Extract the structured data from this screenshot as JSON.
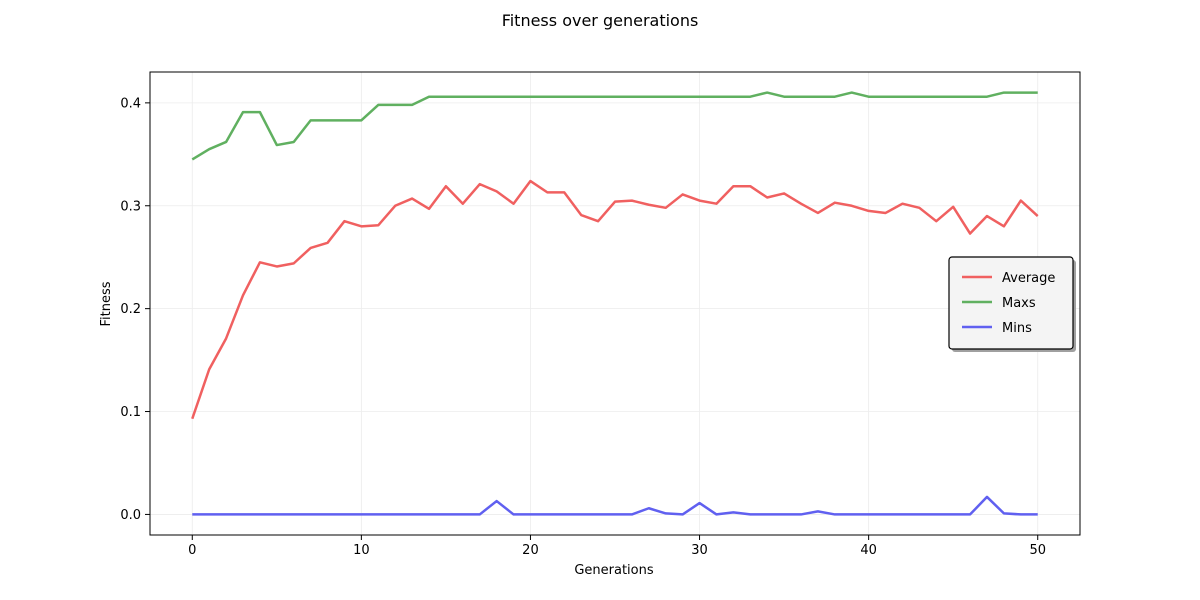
{
  "chart_data": {
    "type": "line",
    "title": "Fitness over generations",
    "xlabel": "Generations",
    "ylabel": "Fitness",
    "xlim": [
      -2.5,
      52.5
    ],
    "ylim": [
      -0.02,
      0.43
    ],
    "xticks": [
      0,
      10,
      20,
      30,
      40,
      50
    ],
    "yticks": [
      0.0,
      0.1,
      0.2,
      0.3,
      0.4
    ],
    "xtick_labels": [
      "0",
      "10",
      "20",
      "30",
      "40",
      "50"
    ],
    "ytick_labels": [
      "0.0",
      "0.1",
      "0.2",
      "0.3",
      "0.4"
    ],
    "grid": true,
    "legend_position": "center-right",
    "x": [
      0,
      1,
      2,
      3,
      4,
      5,
      6,
      7,
      8,
      9,
      10,
      11,
      12,
      13,
      14,
      15,
      16,
      17,
      18,
      19,
      20,
      21,
      22,
      23,
      24,
      25,
      26,
      27,
      28,
      29,
      30,
      31,
      32,
      33,
      34,
      35,
      36,
      37,
      38,
      39,
      40,
      41,
      42,
      43,
      44,
      45,
      46,
      47,
      48,
      49,
      50
    ],
    "series": [
      {
        "name": "Average",
        "color": "#f06060",
        "values": [
          0.093,
          0.141,
          0.171,
          0.213,
          0.245,
          0.241,
          0.244,
          0.259,
          0.264,
          0.285,
          0.28,
          0.281,
          0.3,
          0.307,
          0.297,
          0.319,
          0.302,
          0.321,
          0.314,
          0.302,
          0.324,
          0.313,
          0.313,
          0.291,
          0.285,
          0.304,
          0.305,
          0.301,
          0.298,
          0.311,
          0.305,
          0.302,
          0.319,
          0.319,
          0.308,
          0.312,
          0.302,
          0.293,
          0.303,
          0.3,
          0.295,
          0.293,
          0.302,
          0.298,
          0.285,
          0.299,
          0.273,
          0.29,
          0.28,
          0.305,
          0.29
        ]
      },
      {
        "name": "Maxs",
        "color": "#60b060",
        "values": [
          0.345,
          0.355,
          0.362,
          0.391,
          0.391,
          0.359,
          0.362,
          0.383,
          0.383,
          0.383,
          0.383,
          0.398,
          0.398,
          0.398,
          0.406,
          0.406,
          0.406,
          0.406,
          0.406,
          0.406,
          0.406,
          0.406,
          0.406,
          0.406,
          0.406,
          0.406,
          0.406,
          0.406,
          0.406,
          0.406,
          0.406,
          0.406,
          0.406,
          0.406,
          0.41,
          0.406,
          0.406,
          0.406,
          0.406,
          0.41,
          0.406,
          0.406,
          0.406,
          0.406,
          0.406,
          0.406,
          0.406,
          0.406,
          0.41,
          0.41,
          0.41
        ]
      },
      {
        "name": "Mins",
        "color": "#6060f0",
        "values": [
          0.0,
          0.0,
          0.0,
          0.0,
          0.0,
          0.0,
          0.0,
          0.0,
          0.0,
          0.0,
          0.0,
          0.0,
          0.0,
          0.0,
          0.0,
          0.0,
          0.0,
          0.0,
          0.013,
          0.0,
          0.0,
          0.0,
          0.0,
          0.0,
          0.0,
          0.0,
          0.0,
          0.006,
          0.001,
          0.0,
          0.011,
          0.0,
          0.002,
          0.0,
          0.0,
          0.0,
          0.0,
          0.003,
          0.0,
          0.0,
          0.0,
          0.0,
          0.0,
          0.0,
          0.0,
          0.0,
          0.0,
          0.017,
          0.001,
          0.0,
          0.0
        ]
      }
    ]
  }
}
